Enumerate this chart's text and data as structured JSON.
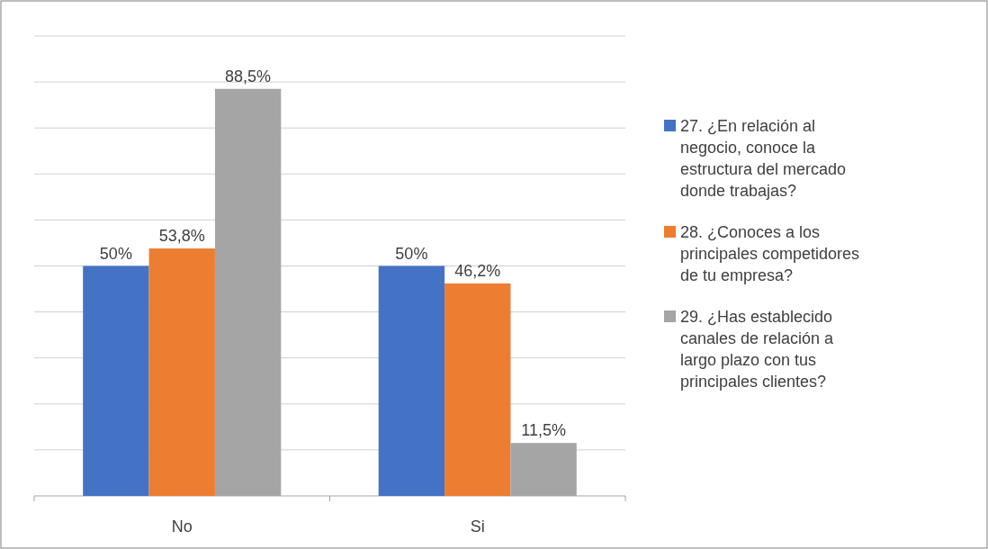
{
  "chart_data": {
    "type": "bar",
    "categories": [
      "No",
      "Si"
    ],
    "series": [
      {
        "name": "27. ¿En relación al negocio, conoce la estructura del mercado donde trabajas?",
        "color": "#4472c4",
        "values": [
          50,
          50
        ],
        "value_labels": [
          "50%",
          "50%"
        ]
      },
      {
        "name": "28. ¿Conoces a los principales competidores de tu empresa?",
        "color": "#ed7d31",
        "values": [
          53.8,
          46.2
        ],
        "value_labels": [
          "53,8%",
          "46,2%"
        ]
      },
      {
        "name": "29. ¿Has establecido canales de relación a largo plazo con tus principales clientes?",
        "color": "#a5a5a5",
        "values": [
          88.5,
          11.5
        ],
        "value_labels": [
          "88,5%",
          "11,5%"
        ]
      }
    ],
    "grid": "y",
    "legend": "right"
  }
}
